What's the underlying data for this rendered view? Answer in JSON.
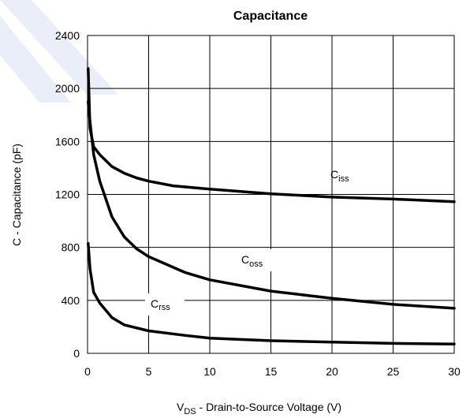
{
  "chart_data": {
    "type": "line",
    "title": "Capacitance",
    "xlabel": {
      "main": "V",
      "sub": "DS",
      "rest": " - Drain-to-Source Voltage (V)"
    },
    "ylabel": "C - Capacitance (pF)",
    "xlim": [
      0,
      30
    ],
    "ylim": [
      0,
      2400
    ],
    "xticks": [
      0,
      5,
      10,
      15,
      20,
      25,
      30
    ],
    "yticks": [
      0,
      400,
      800,
      1200,
      1600,
      2000,
      2400
    ],
    "grid": true,
    "series": [
      {
        "name": {
          "main": "C",
          "sub": "iss"
        },
        "x": [
          0.05,
          0.2,
          0.5,
          1,
          2,
          3,
          4,
          5,
          7,
          10,
          15,
          20,
          25,
          30
        ],
        "y": [
          2150,
          1700,
          1560,
          1500,
          1410,
          1360,
          1325,
          1300,
          1265,
          1240,
          1205,
          1180,
          1165,
          1145
        ]
      },
      {
        "name": {
          "main": "C",
          "sub": "oss"
        },
        "x": [
          0.05,
          0.2,
          0.5,
          1,
          2,
          3,
          4,
          5,
          8,
          10,
          15,
          20,
          25,
          30
        ],
        "y": [
          1900,
          1750,
          1500,
          1300,
          1030,
          880,
          790,
          730,
          610,
          555,
          470,
          415,
          370,
          340
        ]
      },
      {
        "name": {
          "main": "C",
          "sub": "rss"
        },
        "x": [
          0.05,
          0.2,
          0.5,
          1,
          2,
          3,
          5,
          8,
          10,
          15,
          20,
          25,
          30
        ],
        "y": [
          830,
          640,
          460,
          380,
          270,
          215,
          170,
          135,
          115,
          95,
          85,
          75,
          70
        ]
      }
    ]
  }
}
